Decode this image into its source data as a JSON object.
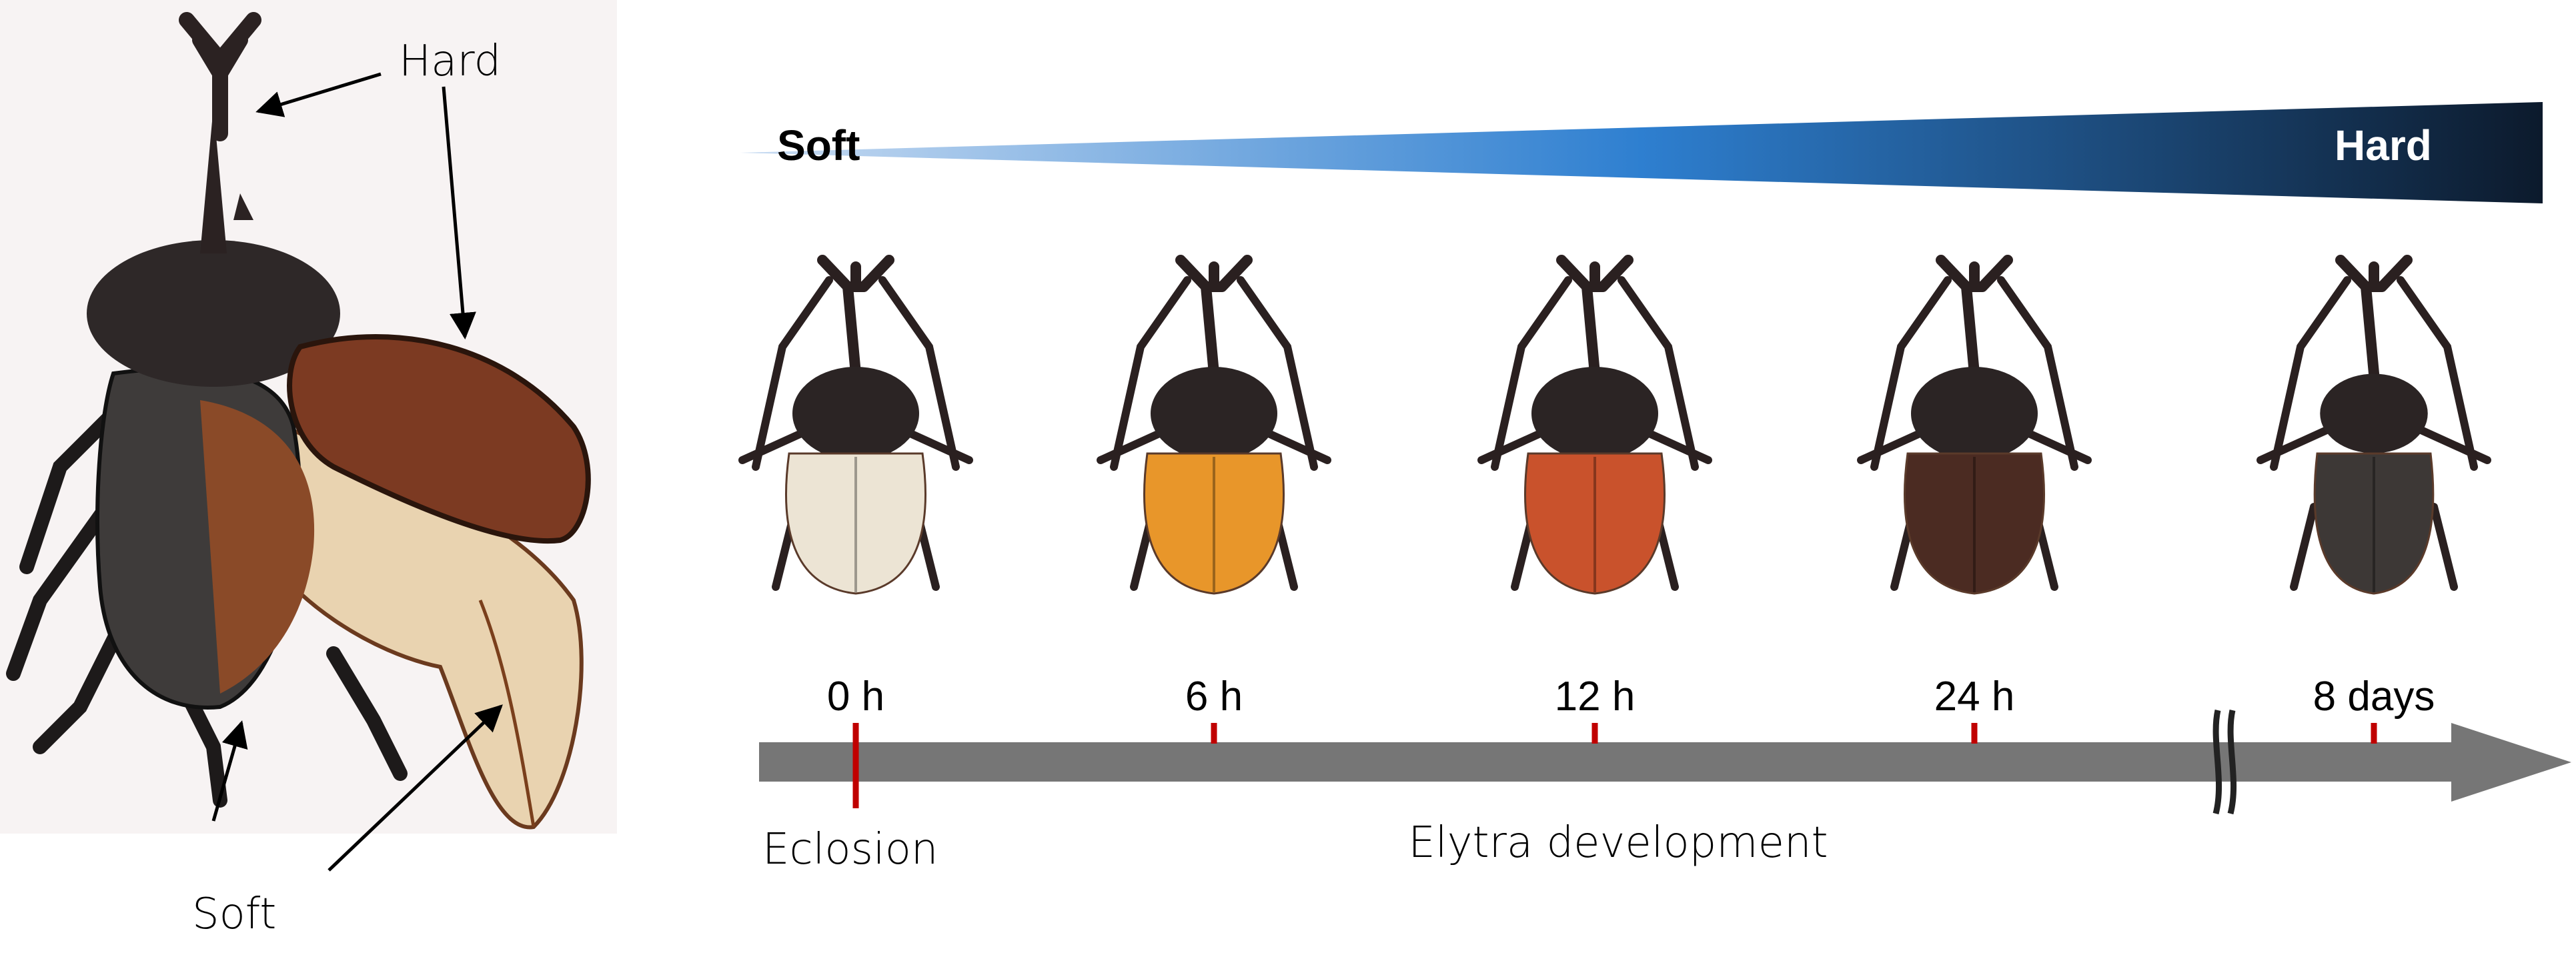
{
  "left_panel": {
    "hard_label": "Hard",
    "soft_label": "Soft",
    "background_color": "#f7f3f3"
  },
  "hardness_bar": {
    "soft_label": "Soft",
    "hard_label": "Hard",
    "gradient_colors": [
      "#c9dcf2",
      "#2e7fd0",
      "#0c1a2c"
    ]
  },
  "timeline": {
    "time_points": [
      {
        "label": "0 h",
        "elytra_color": "#ece4d4"
      },
      {
        "label": "6 h",
        "elytra_color": "#e8962a"
      },
      {
        "label": "12 h",
        "elytra_color": "#c9522c"
      },
      {
        "label": "24 h",
        "elytra_color": "#4b2b22"
      },
      {
        "label": "8 days",
        "elytra_color": "#3d3836"
      }
    ],
    "start_label": "Eclosion",
    "axis_label": "Elytra development",
    "arrow_color": "#767676",
    "tick_color": "#c00000"
  }
}
